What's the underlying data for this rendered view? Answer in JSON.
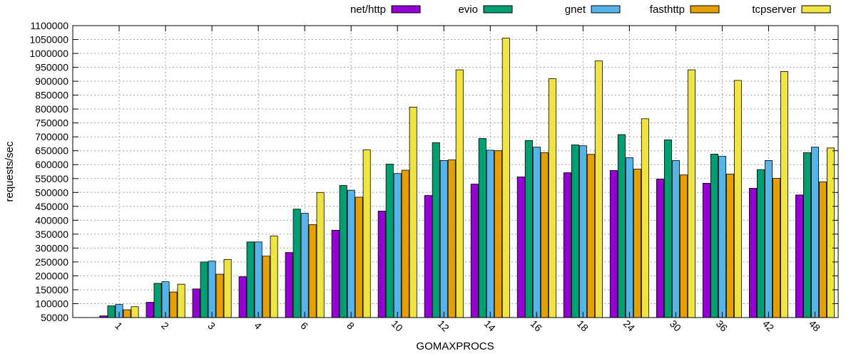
{
  "chart_data": {
    "type": "bar",
    "title": "",
    "xlabel": "GOMAXPROCS",
    "ylabel": "requests/sec",
    "ylim": [
      50000,
      1100000
    ],
    "ytick_step": 50000,
    "grid": true,
    "legend_position": "top-right",
    "categories": [
      "1",
      "2",
      "3",
      "4",
      "6",
      "8",
      "10",
      "12",
      "14",
      "16",
      "18",
      "24",
      "30",
      "36",
      "42",
      "48"
    ],
    "series": [
      {
        "name": "net/http",
        "color": "#9400d3",
        "values": [
          56000,
          105000,
          153000,
          197000,
          284000,
          364000,
          433000,
          489000,
          530000,
          556000,
          571000,
          579000,
          548000,
          533000,
          515000,
          491000
        ]
      },
      {
        "name": "evio",
        "color": "#009e73",
        "values": [
          92000,
          173000,
          250000,
          322000,
          440000,
          525000,
          602000,
          679000,
          694000,
          687000,
          671000,
          708000,
          689000,
          638000,
          582000,
          643000
        ]
      },
      {
        "name": "gnet",
        "color": "#56b4e9",
        "values": [
          97000,
          179000,
          253000,
          322000,
          425000,
          508000,
          568000,
          615000,
          652000,
          663000,
          668000,
          625000,
          615000,
          630000,
          615000,
          663000
        ]
      },
      {
        "name": "fasthttp",
        "color": "#e69f00",
        "values": [
          78000,
          142000,
          206000,
          271000,
          384000,
          483000,
          580000,
          617000,
          650000,
          643000,
          637000,
          584000,
          563000,
          566000,
          551000,
          538000
        ]
      },
      {
        "name": "tcpserver",
        "color": "#f0e442",
        "values": [
          89000,
          170000,
          259000,
          343000,
          500000,
          653000,
          807000,
          941000,
          1055000,
          909000,
          973000,
          765000,
          941000,
          903000,
          935000,
          660000
        ]
      }
    ]
  }
}
